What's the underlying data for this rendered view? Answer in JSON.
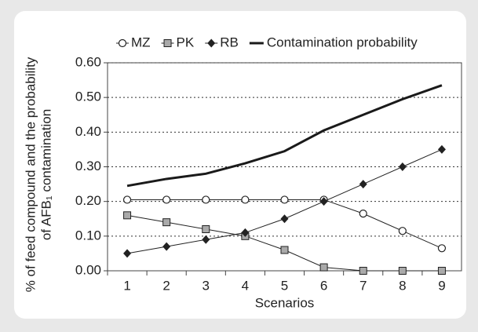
{
  "chart_data": {
    "type": "line",
    "xlabel": "Scenarios",
    "ylabel": [
      "% of feed compound and the probability",
      "of AFB₁ contamination"
    ],
    "categories": [
      "1",
      "2",
      "3",
      "4",
      "5",
      "6",
      "7",
      "8",
      "9"
    ],
    "series": [
      {
        "name": "MZ",
        "color": "#222222",
        "marker": "circle",
        "values": [
          0.205,
          0.205,
          0.205,
          0.205,
          0.205,
          0.205,
          0.165,
          0.115,
          0.065
        ]
      },
      {
        "name": "PK",
        "color": "#222222",
        "marker": "square",
        "values": [
          0.16,
          0.14,
          0.12,
          0.1,
          0.06,
          0.01,
          0,
          0,
          0
        ]
      },
      {
        "name": "RB",
        "color": "#222222",
        "marker": "diamond",
        "values": [
          0.05,
          0.07,
          0.09,
          0.11,
          0.15,
          0.2,
          0.25,
          0.3,
          0.35
        ]
      },
      {
        "name": "Contamination probability",
        "color": "#1a1a1a",
        "marker": "none",
        "values": [
          0.245,
          0.265,
          0.28,
          0.31,
          0.345,
          0.405,
          0.45,
          0.495,
          0.535
        ]
      }
    ],
    "ylim": [
      0,
      0.6
    ],
    "yticks": [
      {
        "value": 0,
        "label": "0.00"
      },
      {
        "value": 0.1,
        "label": "0.10"
      },
      {
        "value": 0.2,
        "label": "0.20"
      },
      {
        "value": 0.3,
        "label": "0.30"
      },
      {
        "value": 0.4,
        "label": "0.40"
      },
      {
        "value": 0.5,
        "label": "0.50"
      },
      {
        "value": 0.6,
        "label": "0.60"
      }
    ],
    "grid": true,
    "legend": "top"
  }
}
